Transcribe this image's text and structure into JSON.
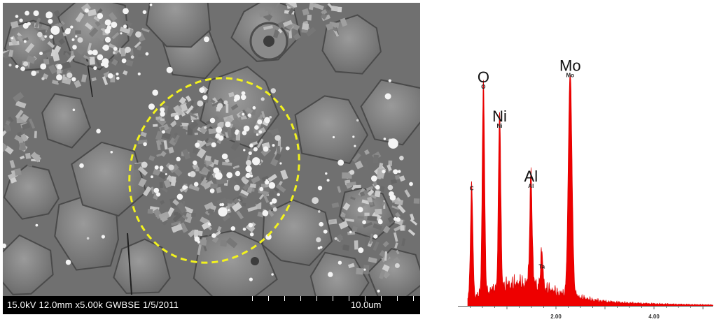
{
  "sem": {
    "info_text": "15.0kV 12.0mm x5.00k GWBSE 1/5/2011",
    "scale_label": "10.0um"
  },
  "chart_data": {
    "type": "line",
    "title": "",
    "xlabel": "",
    "ylabel": "",
    "xlim": [
      0,
      5.2
    ],
    "ylim": [
      0,
      1.0
    ],
    "x_ticks": [
      "2.00",
      "4.00"
    ],
    "x_tick_values": [
      2.0,
      4.0
    ],
    "grid": false,
    "color": "#ee0000",
    "peaks": [
      {
        "element": "C",
        "big_label": "",
        "small_label": "C",
        "x": 0.28,
        "y": 0.49
      },
      {
        "element": "O",
        "big_label": "O",
        "small_label": "O",
        "x": 0.52,
        "y": 0.93
      },
      {
        "element": "Ni",
        "big_label": "Ni",
        "small_label": "Ni",
        "x": 0.85,
        "y": 0.76
      },
      {
        "element": "Al",
        "big_label": "Al",
        "small_label": "Al",
        "x": 1.49,
        "y": 0.5
      },
      {
        "element": "Ta",
        "big_label": "",
        "small_label": "Ta",
        "x": 1.71,
        "y": 0.15
      },
      {
        "element": "Mo",
        "big_label": "Mo",
        "small_label": "Mo",
        "x": 2.29,
        "y": 0.98
      }
    ]
  }
}
